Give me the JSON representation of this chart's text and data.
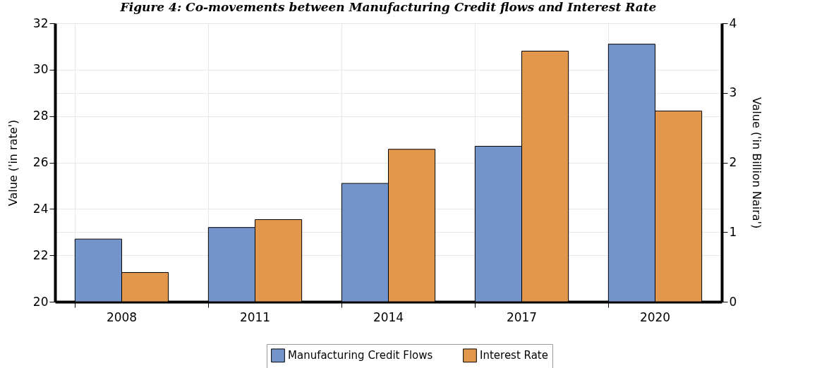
{
  "chart_data": {
    "type": "bar",
    "title": "Figure 4: Co-movements between Manufacturing Credit flows and Interest Rate",
    "ylabel": "Value ('in rate')",
    "y2label": "Value ('in Billion Naira')",
    "categories": [
      "2008",
      "2011",
      "2014",
      "2017",
      "2020"
    ],
    "series": [
      {
        "name": "Manufacturing Credit Flows",
        "color": "#7394cb",
        "values": [
          22.7,
          23.2,
          25.1,
          26.7,
          31.1
        ]
      },
      {
        "name": "Interest Rate",
        "color": "#e1974c",
        "axis": "y2",
        "values": [
          0.42,
          1.18,
          2.19,
          3.6,
          2.74
        ]
      }
    ],
    "ylim": [
      20,
      32
    ],
    "yticks": [
      20,
      22,
      24,
      26,
      28,
      30,
      32
    ],
    "y2lim": [
      0,
      4
    ],
    "y2ticks": [
      0,
      1,
      2,
      3,
      4
    ],
    "grid": true,
    "legend": "bottom"
  }
}
